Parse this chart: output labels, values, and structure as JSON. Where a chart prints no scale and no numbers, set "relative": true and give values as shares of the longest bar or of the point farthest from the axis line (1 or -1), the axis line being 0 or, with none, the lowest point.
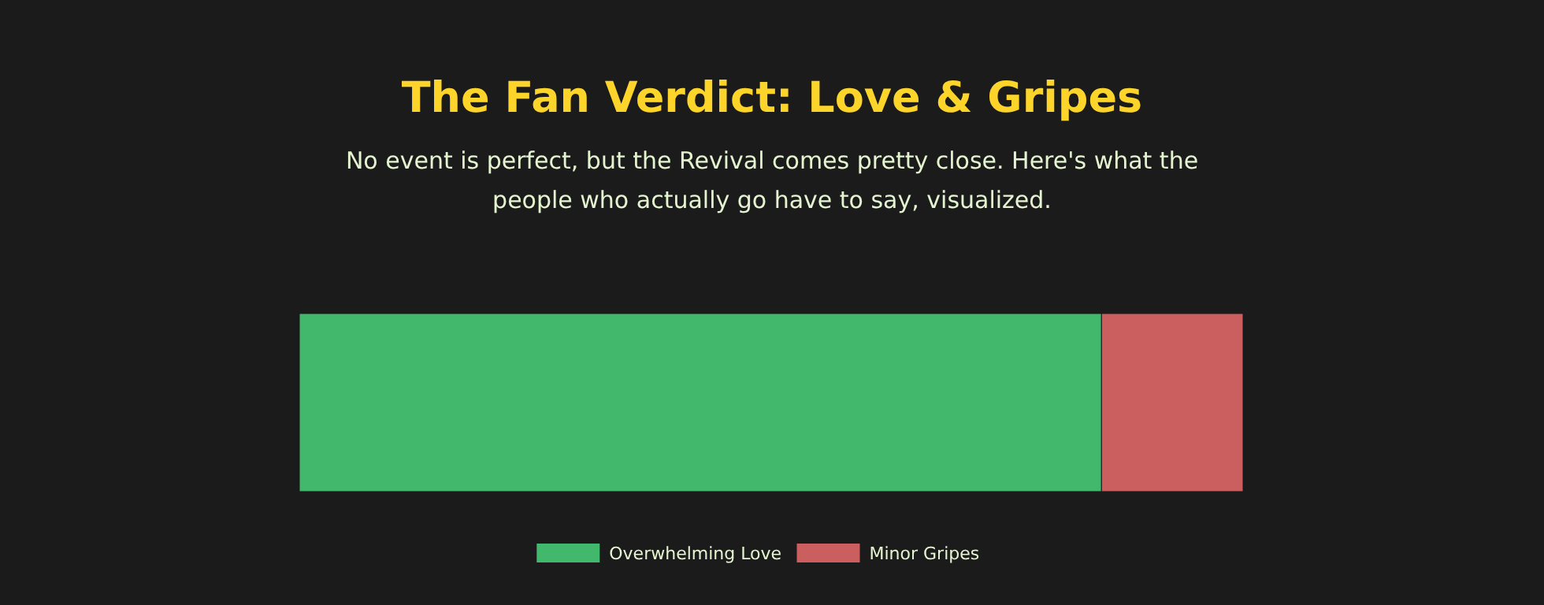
{
  "chart_data": {
    "type": "bar",
    "title": "The Fan Verdict: Love & Gripes",
    "subtitle": "No event is perfect, but the Revival comes pretty close. Here's what the people who actually go have to say, visualized.",
    "orientation": "horizontal",
    "stacked": true,
    "relative": true,
    "categories": [
      null
    ],
    "legend": "bottom",
    "series": [
      {
        "name": "Overwhelming Love",
        "color": "#42b86c",
        "values": [
          0.85
        ]
      },
      {
        "name": "Minor Gripes",
        "color": "#cb5f5f",
        "values": [
          0.15
        ]
      }
    ]
  }
}
